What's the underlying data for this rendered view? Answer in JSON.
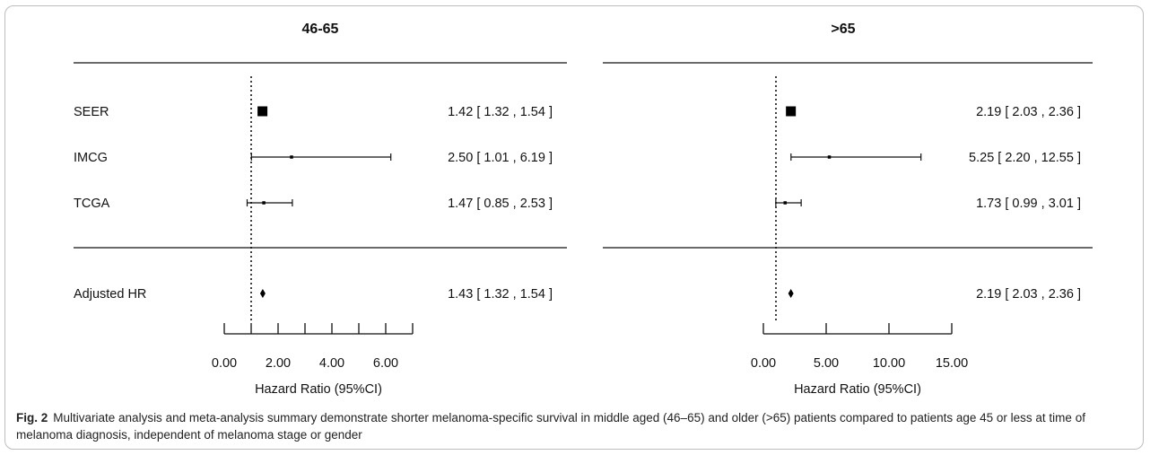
{
  "chart_data": [
    {
      "type": "forest",
      "title": "46-65",
      "xlabel": "Hazard Ratio (95%CI)",
      "xlim": [
        0,
        7
      ],
      "xticks": [
        "0.00",
        "2.00",
        "4.00",
        "6.00"
      ],
      "reference_line": 1,
      "studies": [
        {
          "label": "SEER",
          "hr": 1.42,
          "lower": 1.32,
          "upper": 1.54,
          "text": "1.42 [ 1.32 , 1.54 ]"
        },
        {
          "label": "IMCG",
          "hr": 2.5,
          "lower": 1.01,
          "upper": 6.19,
          "text": "2.50 [ 1.01 , 6.19 ]"
        },
        {
          "label": "TCGA",
          "hr": 1.47,
          "lower": 0.85,
          "upper": 2.53,
          "text": "1.47 [ 0.85 , 2.53 ]"
        }
      ],
      "summary": {
        "label": "Adjusted HR",
        "hr": 1.43,
        "lower": 1.32,
        "upper": 1.54,
        "text": "1.43 [ 1.32 , 1.54 ]"
      }
    },
    {
      "type": "forest",
      "title": ">65",
      "xlabel": "Hazard Ratio (95%CI)",
      "xlim": [
        0,
        15
      ],
      "xticks": [
        "0.00",
        "5.00",
        "10.00",
        "15.00"
      ],
      "reference_line": 1,
      "studies": [
        {
          "label": "",
          "hr": 2.19,
          "lower": 2.03,
          "upper": 2.36,
          "text": "2.19 [ 2.03 ,  2.36 ]"
        },
        {
          "label": "",
          "hr": 5.25,
          "lower": 2.2,
          "upper": 12.55,
          "text": "5.25 [ 2.20 , 12.55 ]"
        },
        {
          "label": "",
          "hr": 1.73,
          "lower": 0.99,
          "upper": 3.01,
          "text": "1.73 [ 0.99 ,  3.01 ]"
        }
      ],
      "summary": {
        "label": "",
        "hr": 2.19,
        "lower": 2.03,
        "upper": 2.36,
        "text": "2.19 [ 2.03 ,  2.36 ]"
      }
    }
  ],
  "caption": {
    "label": "Fig. 2",
    "text": "Multivariate analysis and meta-analysis summary demonstrate shorter melanoma-specific survival in middle aged (46–65) and older (>65) patients compared to patients age 45 or less at time of melanoma diagnosis, independent of melanoma stage or gender"
  }
}
